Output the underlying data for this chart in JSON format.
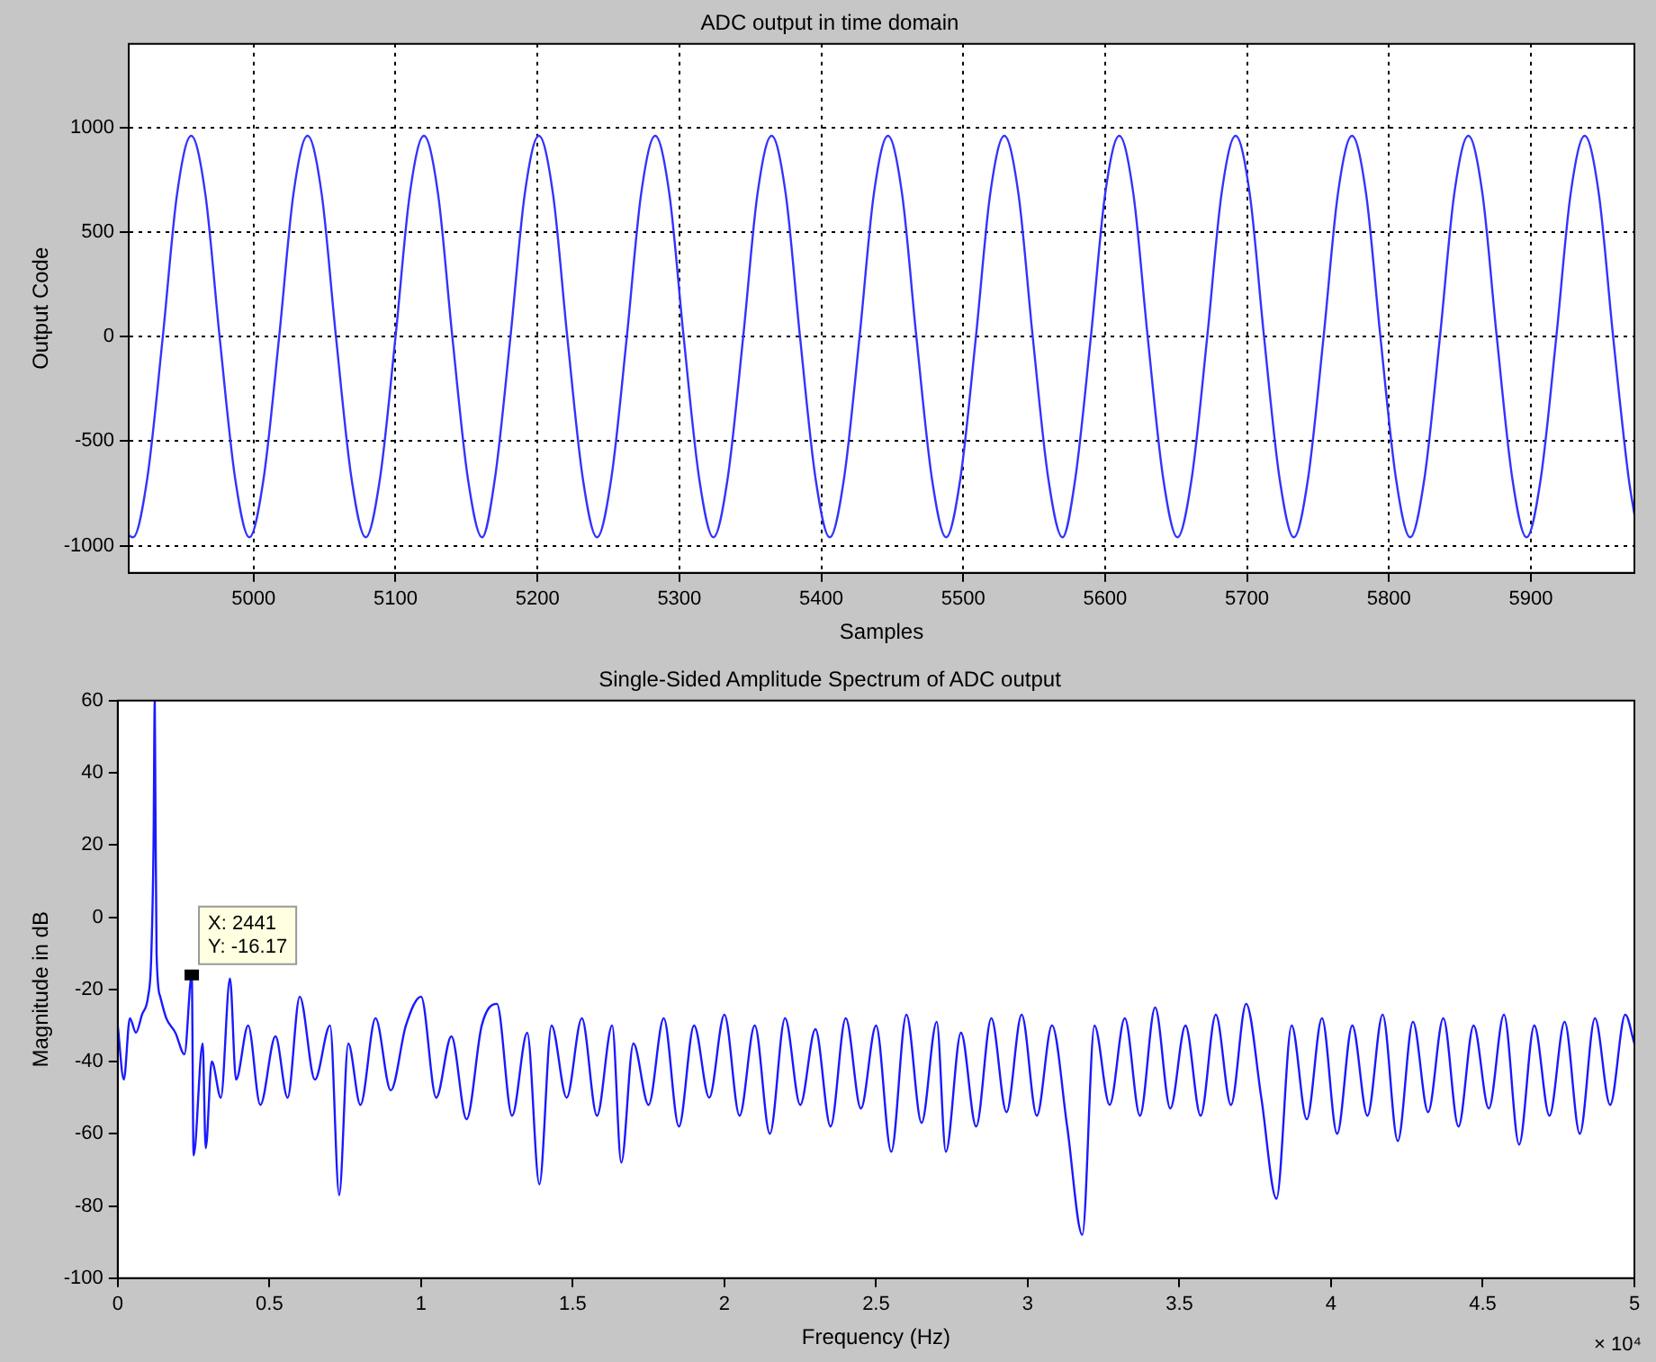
{
  "chart_data": [
    {
      "type": "line",
      "title": "ADC output in time domain",
      "xlabel": "Samples",
      "ylabel": "Output Code",
      "xlim": [
        4912,
        5973
      ],
      "xticks": [
        5000,
        5100,
        5200,
        5300,
        5400,
        5500,
        5600,
        5700,
        5800,
        5900
      ],
      "ylim": [
        -1130,
        1400
      ],
      "yticks": [
        -1000,
        -500,
        0,
        500,
        1000
      ],
      "grid": true,
      "marker": "none",
      "line_style": "solid",
      "legend": false,
      "series": [
        {
          "color": "#3333ff",
          "x": [
            4912,
            4915,
            4925,
            4936,
            4946,
            4956,
            4966,
            4976,
            4987,
            4997,
            5007,
            5018,
            5028,
            5038,
            5048,
            5058,
            5069,
            5079,
            5089,
            5100,
            5110,
            5120,
            5130,
            5140,
            5151,
            5161,
            5170,
            5181,
            5191,
            5201,
            5211,
            5221,
            5232,
            5242,
            5252,
            5263,
            5273,
            5283,
            5293,
            5303,
            5314,
            5324,
            5334,
            5345,
            5355,
            5365,
            5375,
            5385,
            5396,
            5406,
            5416,
            5427,
            5437,
            5447,
            5457,
            5467,
            5478,
            5488,
            5498,
            5509,
            5519,
            5529,
            5539,
            5549,
            5560,
            5570,
            5579,
            5590,
            5600,
            5610,
            5620,
            5630,
            5641,
            5651,
            5661,
            5672,
            5682,
            5692,
            5702,
            5712,
            5723,
            5733,
            5743,
            5754,
            5764,
            5774,
            5784,
            5794,
            5805,
            5815,
            5825,
            5836,
            5846,
            5856,
            5866,
            5876,
            5887,
            5897,
            5907,
            5918,
            5928,
            5938,
            5948,
            5958,
            5969,
            5973
          ],
          "values": [
            -950,
            -960,
            -680,
            0,
            680,
            960,
            680,
            0,
            -680,
            -960,
            -680,
            0,
            680,
            960,
            680,
            0,
            -680,
            -960,
            -680,
            0,
            680,
            960,
            680,
            0,
            -680,
            -960,
            -680,
            0,
            680,
            960,
            680,
            0,
            -680,
            -960,
            -680,
            0,
            680,
            960,
            680,
            0,
            -680,
            -960,
            -680,
            0,
            680,
            960,
            680,
            0,
            -680,
            -960,
            -680,
            0,
            680,
            960,
            680,
            0,
            -680,
            -960,
            -680,
            0,
            680,
            960,
            680,
            0,
            -680,
            -960,
            -680,
            0,
            680,
            960,
            680,
            0,
            -680,
            -960,
            -680,
            0,
            680,
            960,
            680,
            0,
            -680,
            -960,
            -680,
            0,
            680,
            960,
            680,
            0,
            -680,
            -960,
            -680,
            0,
            680,
            960,
            680,
            0,
            -680,
            -960,
            -680,
            0,
            680,
            960,
            680,
            0,
            -680,
            -850
          ]
        }
      ]
    },
    {
      "type": "line",
      "title": "Single-Sided Amplitude Spectrum of ADC output",
      "xlabel": "Frequency (Hz)",
      "ylabel": "Magnitude in dB",
      "xlim": [
        0,
        5
      ],
      "xticks": [
        0,
        0.5,
        1,
        1.5,
        2,
        2.5,
        3,
        3.5,
        4,
        4.5,
        5
      ],
      "ylim": [
        -100,
        60
      ],
      "yticks": [
        -100,
        -80,
        -60,
        -40,
        -20,
        0,
        20,
        40,
        60
      ],
      "grid": false,
      "marker": "none",
      "line_style": "solid",
      "legend": false,
      "annotations": [
        {
          "text": "X: 2441\nY: -16.17",
          "x": 0.244,
          "y": -16
        },
        "× 10⁴"
      ],
      "series": [
        {
          "color": "#1a1aff",
          "x": [
            0,
            0.02,
            0.04,
            0.06,
            0.08,
            0.1,
            0.11,
            0.118,
            0.122,
            0.124,
            0.128,
            0.14,
            0.16,
            0.19,
            0.22,
            0.244,
            0.25,
            0.28,
            0.29,
            0.31,
            0.34,
            0.37,
            0.39,
            0.43,
            0.47,
            0.52,
            0.56,
            0.6,
            0.65,
            0.7,
            0.73,
            0.76,
            0.8,
            0.85,
            0.9,
            0.95,
            1,
            1.05,
            1.1,
            1.15,
            1.2,
            1.25,
            1.3,
            1.35,
            1.39,
            1.43,
            1.48,
            1.53,
            1.58,
            1.63,
            1.66,
            1.7,
            1.75,
            1.8,
            1.85,
            1.9,
            1.95,
            2,
            2.05,
            2.1,
            2.15,
            2.2,
            2.25,
            2.3,
            2.35,
            2.4,
            2.45,
            2.5,
            2.55,
            2.6,
            2.65,
            2.7,
            2.73,
            2.78,
            2.83,
            2.88,
            2.93,
            2.98,
            3.03,
            3.08,
            3.13,
            3.18,
            3.22,
            3.27,
            3.32,
            3.37,
            3.42,
            3.47,
            3.52,
            3.57,
            3.62,
            3.67,
            3.72,
            3.77,
            3.82,
            3.87,
            3.92,
            3.97,
            4.02,
            4.07,
            4.12,
            4.17,
            4.22,
            4.27,
            4.32,
            4.37,
            4.42,
            4.47,
            4.52,
            4.57,
            4.62,
            4.67,
            4.72,
            4.77,
            4.82,
            4.87,
            4.92,
            4.97,
            5
          ],
          "values": [
            -30,
            -45,
            -28,
            -32,
            -27,
            -22,
            -12,
            20,
            60,
            35,
            -10,
            -22,
            -28,
            -32,
            -38,
            -16,
            -66,
            -35,
            -64,
            -40,
            -50,
            -17,
            -45,
            -30,
            -52,
            -33,
            -50,
            -22,
            -45,
            -30,
            -77,
            -35,
            -52,
            -28,
            -48,
            -30,
            -22,
            -50,
            -33,
            -56,
            -30,
            -24,
            -55,
            -32,
            -74,
            -30,
            -50,
            -28,
            -55,
            -30,
            -68,
            -35,
            -52,
            -28,
            -58,
            -30,
            -50,
            -27,
            -55,
            -30,
            -60,
            -28,
            -52,
            -31,
            -58,
            -28,
            -53,
            -30,
            -65,
            -27,
            -57,
            -29,
            -65,
            -32,
            -58,
            -28,
            -54,
            -27,
            -55,
            -30,
            -58,
            -88,
            -30,
            -52,
            -28,
            -55,
            -25,
            -53,
            -30,
            -55,
            -27,
            -52,
            -24,
            -50,
            -78,
            -30,
            -56,
            -28,
            -60,
            -30,
            -55,
            -27,
            -62,
            -29,
            -54,
            -28,
            -58,
            -30,
            -53,
            -27,
            -63,
            -30,
            -55,
            -29,
            -60,
            -28,
            -52,
            -27,
            -35
          ]
        }
      ]
    }
  ]
}
